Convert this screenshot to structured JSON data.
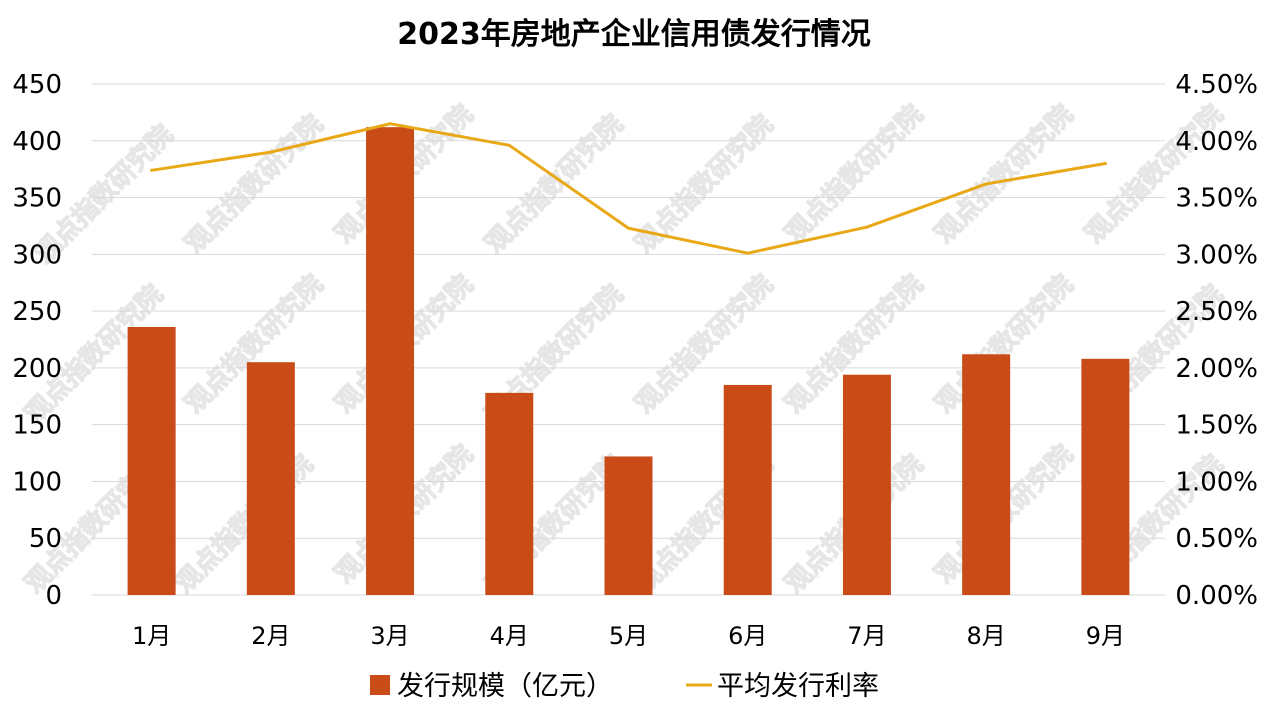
{
  "chart_data": {
    "type": "bar",
    "title": "2023年房地产企业信用债发行情况",
    "categories": [
      "1月",
      "2月",
      "3月",
      "4月",
      "5月",
      "6月",
      "7月",
      "8月",
      "9月"
    ],
    "series": [
      {
        "name": "发行规模（亿元）",
        "type": "bar",
        "axis": "left",
        "color": "#C84B18",
        "values": [
          236,
          205,
          412,
          178,
          122,
          185,
          194,
          212,
          208
        ]
      },
      {
        "name": "平均发行利率",
        "type": "line",
        "axis": "right",
        "color": "#E8A817",
        "values": [
          3.74,
          3.9,
          4.15,
          3.96,
          3.23,
          3.01,
          3.24,
          3.62,
          3.8
        ]
      }
    ],
    "y_left": {
      "min": 0,
      "max": 450,
      "step": 50,
      "ticks": [
        "0",
        "50",
        "100",
        "150",
        "200",
        "250",
        "300",
        "350",
        "400",
        "450"
      ]
    },
    "y_right": {
      "min": 0,
      "max": 4.5,
      "step": 0.5,
      "ticks": [
        "0.00%",
        "0.50%",
        "1.00%",
        "1.50%",
        "2.00%",
        "2.50%",
        "3.00%",
        "3.50%",
        "4.00%",
        "4.50%"
      ]
    },
    "grid": true,
    "legend_position": "bottom",
    "watermark": "观点指数研究院"
  }
}
